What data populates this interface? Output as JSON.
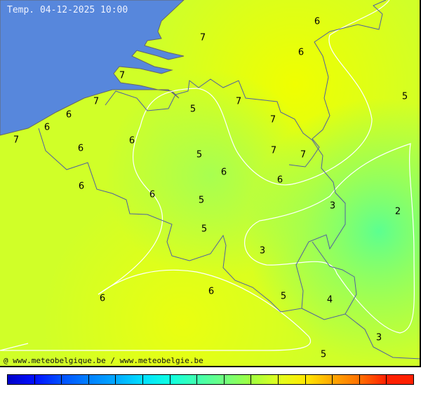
{
  "title": "Temp. 04-12-2025 10:00",
  "credit": "@ www.meteobelgique.be / www.meteobelgie.be",
  "colors": {
    "sea": "#5787dc",
    "land_warm": "#e6ff10",
    "land_base": "#c8ff30",
    "land_cool": "#60ff90"
  },
  "labels": [
    "7",
    "6",
    "6",
    "7",
    "7",
    "6",
    "6",
    "7",
    "5",
    "5",
    "7",
    "7",
    "6",
    "6",
    "5",
    "7",
    "7",
    "6",
    "6",
    "6",
    "6",
    "5",
    "3",
    "2",
    "5",
    "3",
    "6",
    "6",
    "5",
    "4",
    "3",
    "5"
  ],
  "legend_colors": [
    "#0000c8",
    "#0010ff",
    "#0050ff",
    "#0080ff",
    "#00a8ff",
    "#00e0ff",
    "#10ffe0",
    "#40ffb0",
    "#70ff80",
    "#a0ff40",
    "#e0ff20",
    "#ffe800",
    "#ffa800",
    "#ff7000",
    "#ff2000"
  ]
}
